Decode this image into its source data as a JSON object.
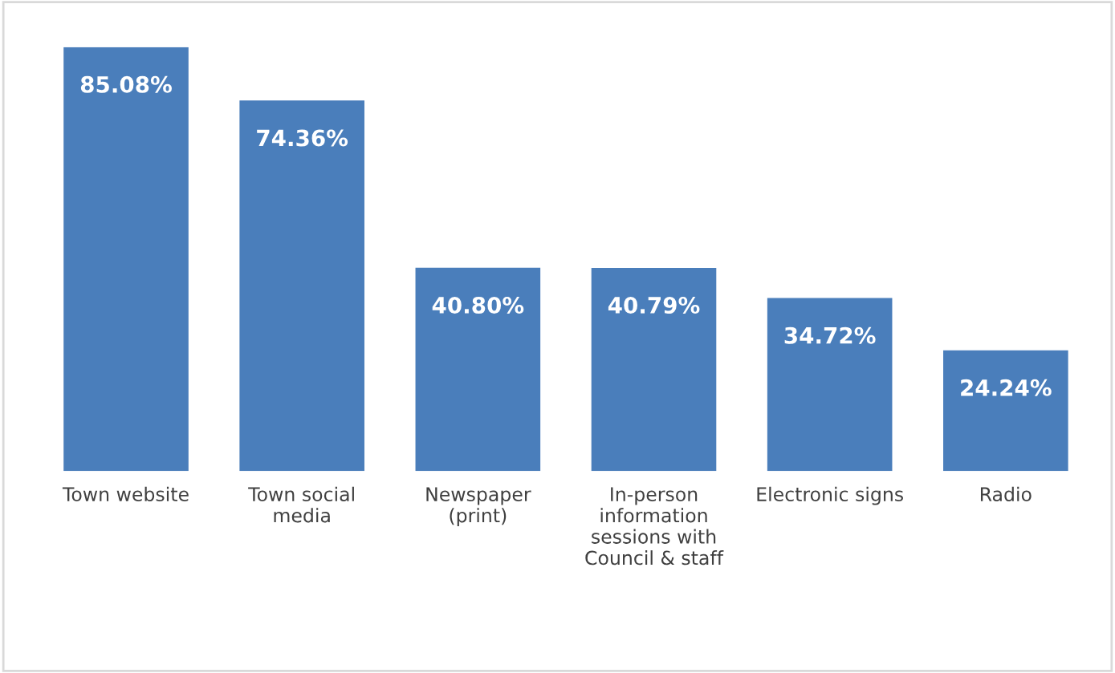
{
  "chart_data": {
    "type": "bar",
    "categories": [
      "Town website",
      "Town social media",
      "Newspaper (print)",
      "In-person information sessions with Council & staff",
      "Electronic signs",
      "Radio"
    ],
    "values": [
      85.08,
      74.36,
      40.8,
      40.79,
      34.72,
      24.24
    ],
    "value_labels": [
      "85.08%",
      "74.36%",
      "40.80%",
      "40.79%",
      "34.72%",
      "24.24%"
    ],
    "color": "#4a7ebb",
    "legend": false,
    "tick_labels": "x"
  }
}
